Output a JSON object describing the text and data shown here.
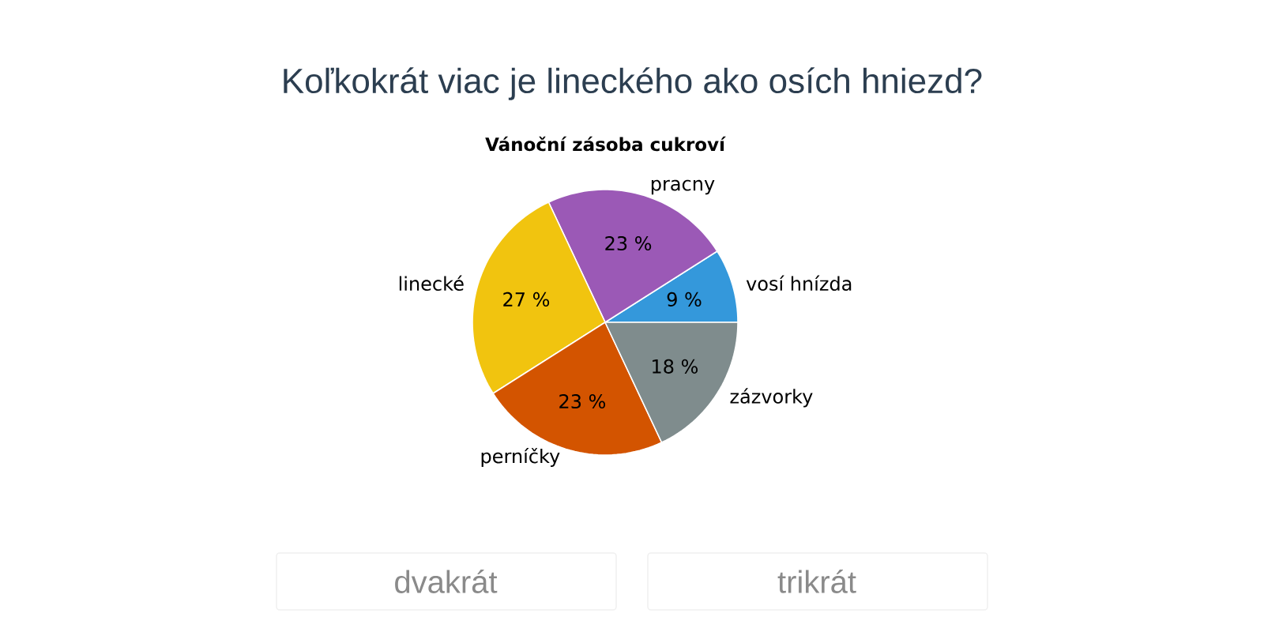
{
  "chart_data": {
    "type": "pie",
    "title": "Koľkokrát viac je lineckého ako osích hniezd?",
    "subtitle": "Vánoční zásoba cukroví",
    "categories": [
      "vosí hnízda",
      "pracny",
      "linecké",
      "perníčky",
      "zázvorky"
    ],
    "values": [
      9,
      23,
      27,
      23,
      18
    ],
    "value_labels": [
      "9 %",
      "23 %",
      "27 %",
      "23 %",
      "18 %"
    ],
    "colors": [
      "#3498db",
      "#9b59b6",
      "#f1c40f",
      "#d35400",
      "#7f8c8d"
    ],
    "annotations": [
      "dvakrát",
      "trikrát"
    ]
  }
}
